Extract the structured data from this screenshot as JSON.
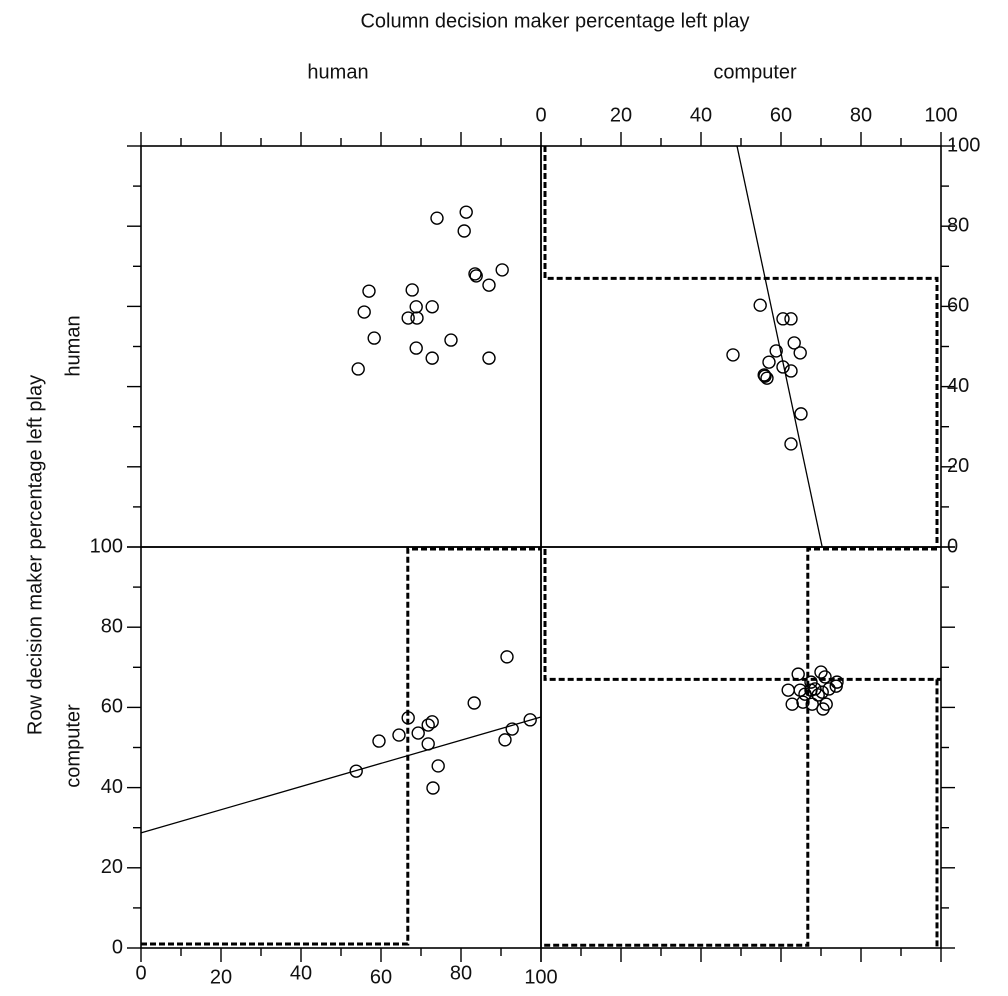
{
  "figure": {
    "x_title": "Column decision maker percentage left play",
    "y_title": "Row decision maker percentage left play",
    "columns": [
      "human",
      "computer"
    ],
    "rows": [
      "human",
      "computer"
    ]
  },
  "chart_data": [
    {
      "type": "scatter",
      "xlim": [
        0,
        100
      ],
      "ylim": [
        0,
        100
      ],
      "x": [
        74.0,
        81.3,
        80.8,
        83.5,
        83.8,
        90.3,
        57.0,
        67.8,
        87.0,
        55.8,
        72.8,
        68.8,
        66.8,
        69.0,
        58.3,
        77.5,
        68.8,
        72.8,
        87.0,
        54.3
      ],
      "y": [
        82.0,
        83.5,
        78.8,
        68.1,
        67.6,
        69.1,
        63.8,
        64.1,
        65.3,
        58.6,
        59.9,
        59.9,
        57.1,
        57.1,
        52.1,
        51.6,
        49.6,
        47.1,
        47.1,
        44.4
      ]
    },
    {
      "type": "scatter",
      "xlim": [
        0,
        100
      ],
      "ylim": [
        0,
        100
      ],
      "xticks": [
        0,
        20,
        40,
        60,
        80,
        100
      ],
      "yticks": [
        0,
        20,
        40,
        60,
        80,
        100
      ],
      "minor_xticks": [
        10,
        30,
        50,
        70,
        90
      ],
      "minor_yticks": [
        10,
        30,
        50,
        70,
        90
      ],
      "x": [
        54.8,
        60.5,
        62.5,
        48.0,
        58.8,
        63.3,
        64.8,
        57.0,
        60.5,
        62.5,
        55.8,
        56.5,
        56.0,
        65.0,
        62.5
      ],
      "y": [
        60.3,
        56.9,
        56.9,
        47.9,
        48.9,
        50.9,
        48.4,
        46.1,
        44.9,
        43.9,
        42.9,
        42.1,
        42.6,
        33.2,
        25.7
      ],
      "fit": {
        "x": [
          49,
          70.3
        ],
        "y": [
          100,
          0
        ]
      },
      "dashed": [
        {
          "x": [
            1,
            1,
            99,
            99
          ],
          "y": [
            100,
            67,
            67,
            0
          ]
        }
      ]
    },
    {
      "type": "scatter",
      "xlim": [
        0,
        100
      ],
      "ylim": [
        0,
        100
      ],
      "xticks": [
        0,
        20,
        40,
        60,
        80,
        100
      ],
      "yticks": [
        0,
        20,
        40,
        60,
        80,
        100
      ],
      "minor_xticks": [
        10,
        30,
        50,
        70,
        90
      ],
      "minor_yticks": [
        10,
        30,
        50,
        70,
        90
      ],
      "x": [
        53.8,
        59.5,
        64.5,
        66.8,
        69.3,
        71.8,
        72.8,
        71.8,
        74.3,
        73.0,
        83.3,
        91.0,
        92.8,
        91.5,
        97.3
      ],
      "y": [
        44.1,
        51.6,
        53.1,
        57.4,
        53.6,
        55.6,
        56.4,
        50.9,
        45.4,
        39.9,
        61.1,
        51.9,
        54.6,
        72.6,
        56.9
      ],
      "fit": {
        "x": [
          0,
          100
        ],
        "y": [
          28.7,
          57.6
        ]
      },
      "dashed": [
        {
          "x": [
            0,
            66.7,
            66.7,
            100
          ],
          "y": [
            1,
            1,
            99.5,
            99.5
          ]
        }
      ]
    },
    {
      "type": "scatter",
      "xlim": [
        0,
        100
      ],
      "ylim": [
        0,
        100
      ],
      "x": [
        64.3,
        70.0,
        71.0,
        67.5,
        73.8,
        64.8,
        67.5,
        68.5,
        70.3,
        72.0,
        61.8,
        66.0,
        69.3,
        65.5,
        62.8,
        67.8,
        71.3,
        70.5,
        74.0
      ],
      "y": [
        68.3,
        68.8,
        67.6,
        66.3,
        65.3,
        64.3,
        64.3,
        64.6,
        63.8,
        64.6,
        64.3,
        63.3,
        63.1,
        61.3,
        60.8,
        60.8,
        60.8,
        59.6,
        66.3
      ],
      "dashed": [
        {
          "x": [
            1,
            1,
            100
          ],
          "y": [
            99.5,
            67,
            67
          ]
        },
        {
          "x": [
            99,
            66.7,
            66.7,
            0
          ],
          "y": [
            99.5,
            99.5,
            0.7,
            0.7
          ]
        },
        {
          "x": [
            99,
            99
          ],
          "y": [
            67,
            0
          ]
        }
      ]
    }
  ]
}
